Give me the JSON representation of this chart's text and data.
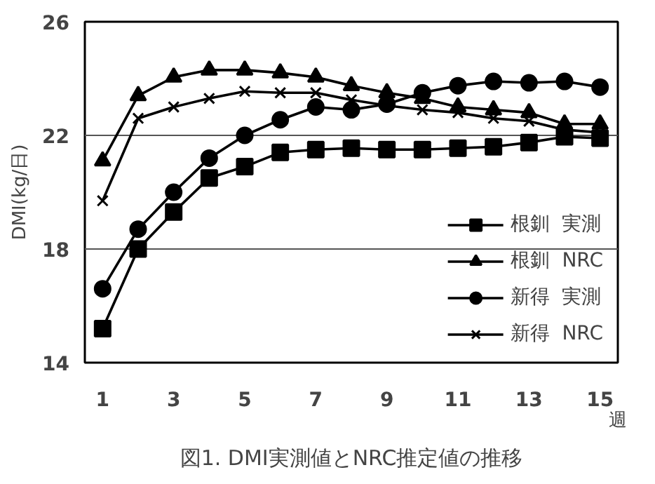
{
  "chart_data": {
    "type": "line",
    "title": "図1. DMI実測値とNRC推定値の推移",
    "ylabel": "DMI(kg/日)",
    "xlabel": "週",
    "x": [
      1,
      2,
      3,
      4,
      5,
      6,
      7,
      8,
      9,
      10,
      11,
      12,
      13,
      14,
      15
    ],
    "xlim": [
      0.5,
      15.5
    ],
    "xticks": [
      1,
      3,
      5,
      7,
      9,
      11,
      13,
      15
    ],
    "ylim": [
      14,
      26
    ],
    "yticks": [
      14,
      18,
      22,
      26
    ],
    "grid": "y",
    "legend": "bottom right",
    "series": [
      {
        "name": "根釧  実測",
        "color": "#000000",
        "marker": "square",
        "values": [
          15.2,
          18.0,
          19.3,
          20.5,
          20.9,
          21.4,
          21.5,
          21.55,
          21.5,
          21.5,
          21.55,
          21.6,
          21.75,
          21.95,
          21.9
        ]
      },
      {
        "name": "根釧  NRC",
        "color": "#000000",
        "marker": "triangle",
        "values": [
          21.1,
          23.4,
          24.05,
          24.3,
          24.3,
          24.2,
          24.05,
          23.75,
          23.5,
          23.3,
          23.0,
          22.9,
          22.8,
          22.4,
          22.4
        ]
      },
      {
        "name": "新得  実測",
        "color": "#000000",
        "marker": "circle",
        "values": [
          16.6,
          18.7,
          20.0,
          21.2,
          22.0,
          22.55,
          23.0,
          22.9,
          23.1,
          23.5,
          23.75,
          23.9,
          23.85,
          23.9,
          23.7
        ]
      },
      {
        "name": "新得  NRC",
        "color": "#000000",
        "marker": "cross",
        "values": [
          19.7,
          22.6,
          23.0,
          23.3,
          23.55,
          23.5,
          23.5,
          23.25,
          23.05,
          22.9,
          22.8,
          22.6,
          22.5,
          22.2,
          22.1
        ]
      }
    ]
  }
}
